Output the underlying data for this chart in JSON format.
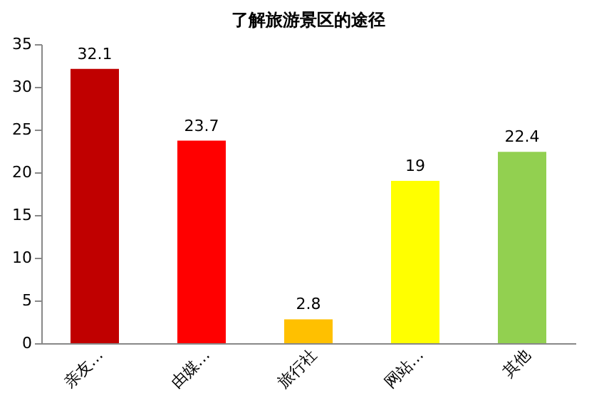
{
  "chart_data": {
    "type": "bar",
    "title": "了解旅游景区的途径",
    "categories": [
      "亲友…",
      "由媒…",
      "旅行社",
      "网站…",
      "其他"
    ],
    "values": [
      32.1,
      23.7,
      2.8,
      19,
      22.4
    ],
    "colors": [
      "#c00000",
      "#ff0000",
      "#ffc000",
      "#ffff00",
      "#92d050"
    ],
    "ylim": [
      0,
      35
    ],
    "yticks": [
      0,
      5,
      10,
      15,
      20,
      25,
      30,
      35
    ],
    "grid": false,
    "data_labels": true
  }
}
